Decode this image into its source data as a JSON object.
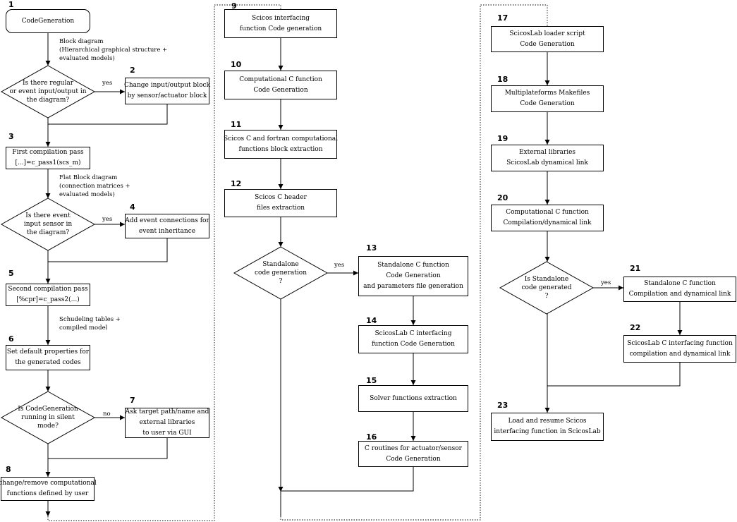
{
  "nodes": [
    {
      "id": "n1",
      "step": "1",
      "lines": [
        "CodeGeneration"
      ]
    },
    {
      "id": "n2",
      "step": "2",
      "lines": [
        "Change input/output block",
        "by sensor/actuator block"
      ]
    },
    {
      "id": "n3",
      "step": "3",
      "lines": [
        "First compilation pass",
        "[...]=c_pass1(scs_m)"
      ]
    },
    {
      "id": "n4",
      "step": "4",
      "lines": [
        "Add event connections for",
        "event inheritance"
      ]
    },
    {
      "id": "n5",
      "step": "5",
      "lines": [
        "Second compilation pass",
        "[%cpr]=c_pass2(...)"
      ]
    },
    {
      "id": "n6",
      "step": "6",
      "lines": [
        "Set default properties for",
        "the generated codes"
      ]
    },
    {
      "id": "n7",
      "step": "7",
      "lines": [
        "Ask target path/name and",
        "external libraries",
        "to user via GUI"
      ]
    },
    {
      "id": "n8",
      "step": "8",
      "lines": [
        "change/remove computational",
        "functions defined by user"
      ]
    },
    {
      "id": "n9",
      "step": "9",
      "lines": [
        "Scicos interfacing",
        "function Code generation"
      ]
    },
    {
      "id": "n10",
      "step": "10",
      "lines": [
        "Computational C function",
        "Code Generation"
      ]
    },
    {
      "id": "n11",
      "step": "11",
      "lines": [
        "Scicos C and fortran computational",
        "functions block extraction"
      ]
    },
    {
      "id": "n12",
      "step": "12",
      "lines": [
        "Scicos C header",
        "files extraction"
      ]
    },
    {
      "id": "n13",
      "step": "13",
      "lines": [
        "Standalone C function",
        "Code Generation",
        "and parameters file generation"
      ]
    },
    {
      "id": "n14",
      "step": "14",
      "lines": [
        "ScicosLab C interfacing",
        "function Code Generation"
      ]
    },
    {
      "id": "n15",
      "step": "15",
      "lines": [
        "Solver functions extraction"
      ]
    },
    {
      "id": "n16",
      "step": "16",
      "lines": [
        "C routines for actuator/sensor",
        "Code Generation"
      ]
    },
    {
      "id": "n17",
      "step": "17",
      "lines": [
        "ScicosLab loader script",
        "Code Generation"
      ]
    },
    {
      "id": "n18",
      "step": "18",
      "lines": [
        "Multiplateforms Makefiles",
        "Code Generation"
      ]
    },
    {
      "id": "n19",
      "step": "19",
      "lines": [
        "External libraries",
        "ScicosLab dynamical link"
      ]
    },
    {
      "id": "n20",
      "step": "20",
      "lines": [
        "Computational C function",
        "Compilation/dynamical link"
      ]
    },
    {
      "id": "n21",
      "step": "21",
      "lines": [
        "Standalone  C function",
        "Compilation and dynamical link"
      ]
    },
    {
      "id": "n22",
      "step": "22",
      "lines": [
        "ScicosLab C interfacing function",
        "compilation and dynamical link"
      ]
    },
    {
      "id": "n23",
      "step": "23",
      "lines": [
        "Load and resume Scicos",
        "interfacing function in ScicosLab"
      ]
    }
  ],
  "decisions": [
    {
      "id": "d1",
      "lines": [
        "Is there regular",
        "or event input/output in",
        "the diagram?"
      ]
    },
    {
      "id": "d2",
      "lines": [
        "Is there event",
        "input sensor in",
        "the diagram?"
      ]
    },
    {
      "id": "d3",
      "lines": [
        "Is CodeGeneration",
        "running in silent",
        "mode?"
      ]
    },
    {
      "id": "d4",
      "lines": [
        "Standalone",
        "code generation",
        "?"
      ]
    },
    {
      "id": "d5",
      "lines": [
        "Is Standalone",
        "code generated",
        "?"
      ]
    }
  ],
  "notes": [
    {
      "id": "a1",
      "lines": [
        "Block diagram",
        "(Hierarchical graphical structure +",
        "evaluated models)"
      ]
    },
    {
      "id": "a2",
      "lines": [
        "Flat Block diagram",
        "(connection matrices +",
        "evaluated models)"
      ]
    },
    {
      "id": "a3",
      "lines": [
        "Schudeling tables +",
        "compiled model"
      ]
    }
  ],
  "edge_labels": {
    "yes": "yes",
    "no": "no"
  }
}
